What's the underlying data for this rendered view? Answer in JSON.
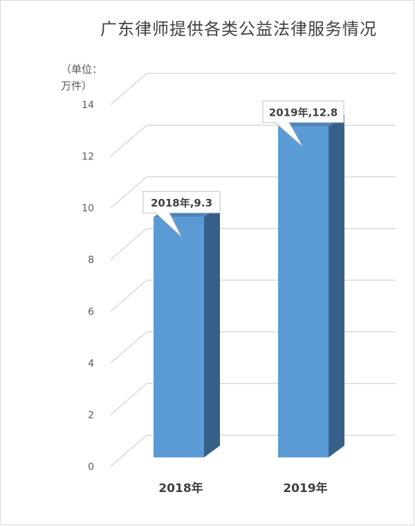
{
  "chart_data": {
    "type": "bar",
    "title": "广东律师提供各类公益法律服务情况",
    "ylabel": "（单位：万件）",
    "ylabel_lines": [
      "（单位:",
      "万件）"
    ],
    "xlabel": "",
    "categories": [
      "2018年",
      "2019年"
    ],
    "values": [
      9.3,
      12.8
    ],
    "data_labels": [
      "2018年,9.3",
      "2019年,12.8"
    ],
    "ylim": [
      0,
      14
    ],
    "yticks": [
      0,
      2,
      4,
      6,
      8,
      10,
      12,
      14
    ],
    "grid": true,
    "legend": "none",
    "colors": {
      "front": "#5b9bd5",
      "side": "#376088",
      "top": "#4a84bb",
      "grid": "#d9d9d9",
      "text": "#595959"
    }
  }
}
